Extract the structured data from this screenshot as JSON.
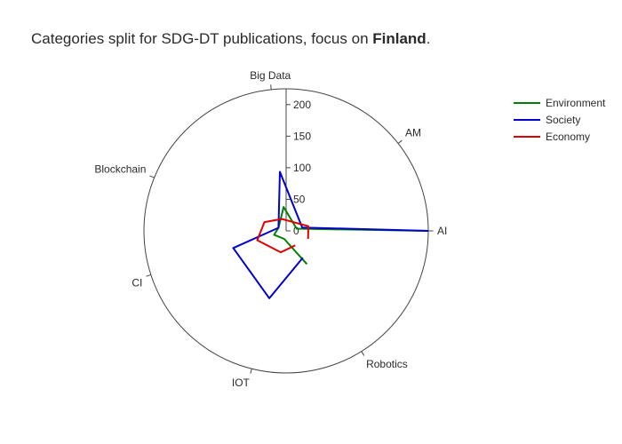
{
  "chart_data": {
    "type": "radar",
    "title_prefix": "Categories split for SDG-DT publications, focus on ",
    "title_focus": "Finland",
    "title_suffix": ".",
    "categories": [
      "AI",
      "AM",
      "Big Data",
      "Blockchain",
      "CI",
      "IOT",
      "Robotics"
    ],
    "category_angles_deg": [
      0,
      38,
      96,
      158,
      198,
      256,
      302
    ],
    "radial_ticks": [
      0,
      50,
      100,
      150,
      200
    ],
    "radial_range": [
      0,
      225
    ],
    "series": [
      {
        "name": "Environment",
        "color": "#008000",
        "points": [
          [
            0,
            225
          ],
          [
            12,
            17
          ],
          [
            96,
            38
          ],
          [
            158,
            13
          ],
          [
            198,
            20
          ],
          [
            256,
            13
          ],
          [
            302,
            62
          ]
        ]
      },
      {
        "name": "Society",
        "color": "#0000cc",
        "points": [
          [
            0,
            225
          ],
          [
            12,
            26
          ],
          [
            96,
            94
          ],
          [
            158,
            13
          ],
          [
            198,
            88
          ],
          [
            256,
            110
          ],
          [
            302,
            50
          ]
        ]
      },
      {
        "name": "Economy",
        "color": "#dd0000",
        "points": [
          [
            340,
            37
          ],
          [
            12,
            36
          ],
          [
            110,
            20
          ],
          [
            158,
            37
          ],
          [
            198,
            48
          ],
          [
            256,
            35
          ],
          [
            302,
            27
          ]
        ]
      }
    ],
    "legend_position": "top-right",
    "grid": false
  }
}
